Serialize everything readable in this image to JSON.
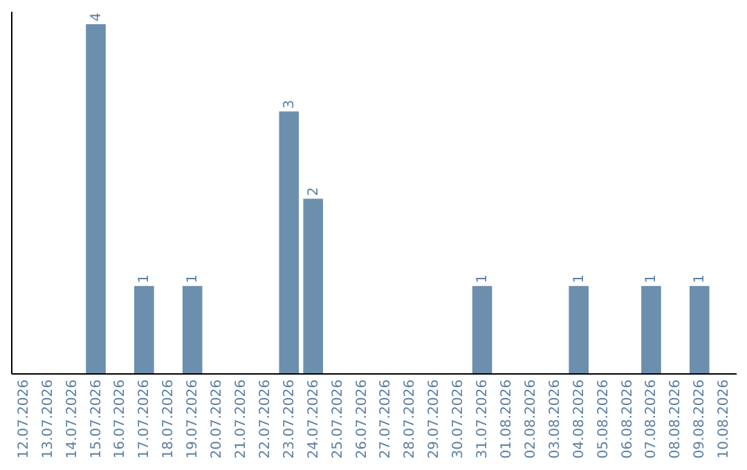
{
  "chart_data": {
    "type": "bar",
    "categories": [
      "12.07.2026",
      "13.07.2026",
      "14.07.2026",
      "15.07.2026",
      "16.07.2026",
      "17.07.2026",
      "18.07.2026",
      "19.07.2026",
      "20.07.2026",
      "21.07.2026",
      "22.07.2026",
      "23.07.2026",
      "24.07.2026",
      "25.07.2026",
      "26.07.2026",
      "27.07.2026",
      "28.07.2026",
      "29.07.2026",
      "30.07.2026",
      "31.07.2026",
      "01.08.2026",
      "02.08.2026",
      "03.08.2026",
      "04.08.2026",
      "05.08.2026",
      "06.08.2026",
      "07.08.2026",
      "08.08.2026",
      "09.08.2026",
      "10.08.2026"
    ],
    "values": [
      null,
      null,
      null,
      4,
      null,
      1,
      null,
      1,
      null,
      null,
      null,
      3,
      2,
      null,
      null,
      null,
      null,
      null,
      null,
      1,
      null,
      null,
      null,
      1,
      null,
      null,
      1,
      null,
      1,
      null
    ],
    "color": "#6d8fae",
    "ylim": [
      0,
      4.15
    ],
    "data_labels": true
  }
}
